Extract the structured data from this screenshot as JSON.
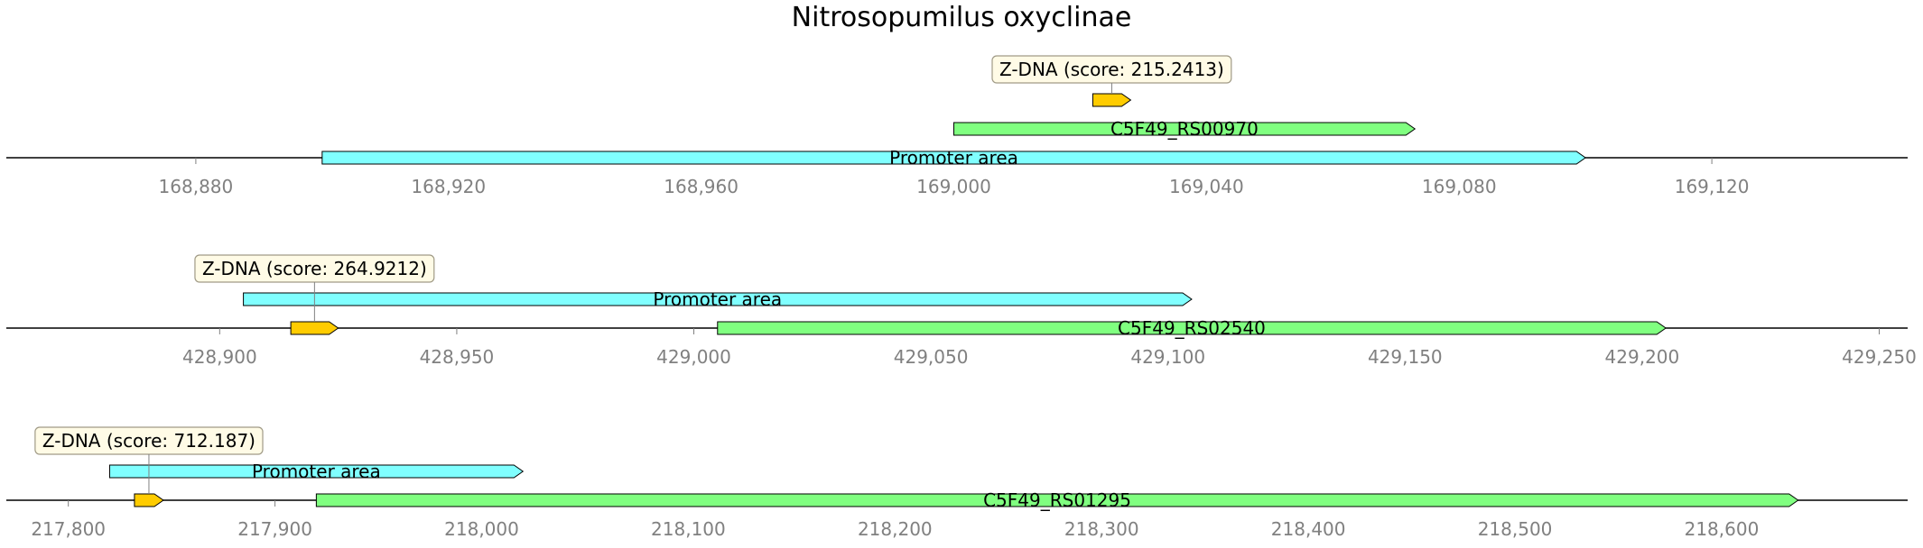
{
  "title": "Nitrosopumilus oxyclinae",
  "colors": {
    "axis": "#000000",
    "tick_text": "#808080",
    "z_dna": "#ffcc00",
    "promoter": "#80ffff",
    "gene": "#80ff80",
    "callout_fill": "#fffbe6",
    "callout_border": "#a09a86"
  },
  "chart_data": [
    {
      "type": "genomic-track",
      "xlim": [
        168850,
        169151
      ],
      "ticks": [
        168880,
        168920,
        168960,
        169000,
        169040,
        169080,
        169120
      ],
      "tick_labels": [
        "168,880",
        "168,920",
        "168,960",
        "169,000",
        "169,040",
        "169,080",
        "169,120"
      ],
      "features": [
        {
          "kind": "promoter",
          "label": "Promoter area",
          "start": 168900,
          "end": 169100,
          "strand": 1,
          "level": 0
        },
        {
          "kind": "gene",
          "label": "C5F49_RS00970",
          "start": 169000,
          "end": 169073,
          "strand": 1,
          "level": 1
        },
        {
          "kind": "z_dna",
          "label": "",
          "start": 169022,
          "end": 169028,
          "strand": 1,
          "level": 2
        }
      ],
      "callout": {
        "text": "Z-DNA (score: 215.2413)",
        "feature_index": 2,
        "level": 3
      }
    },
    {
      "type": "genomic-track",
      "xlim": [
        428855,
        429256
      ],
      "ticks": [
        428900,
        428950,
        429000,
        429050,
        429100,
        429150,
        429200,
        429250
      ],
      "tick_labels": [
        "428,900",
        "428,950",
        "429,000",
        "429,050",
        "429,100",
        "429,150",
        "429,200",
        "429,250"
      ],
      "features": [
        {
          "kind": "z_dna",
          "label": "",
          "start": 428915,
          "end": 428925,
          "strand": 1,
          "level": 0
        },
        {
          "kind": "gene",
          "label": "C5F49_RS02540",
          "start": 429005,
          "end": 429205,
          "strand": 1,
          "level": 0
        },
        {
          "kind": "promoter",
          "label": "Promoter area",
          "start": 428905,
          "end": 429105,
          "strand": 1,
          "level": 1
        }
      ],
      "callout": {
        "text": "Z-DNA (score: 264.9212)",
        "feature_index": 0,
        "level": 2
      }
    },
    {
      "type": "genomic-track",
      "xlim": [
        217770,
        218690
      ],
      "ticks": [
        217800,
        217900,
        218000,
        218100,
        218200,
        218300,
        218400,
        218500,
        218600
      ],
      "tick_labels": [
        "217,800",
        "217,900",
        "218,000",
        "218,100",
        "218,200",
        "218,300",
        "218,400",
        "218,500",
        "218,600"
      ],
      "features": [
        {
          "kind": "z_dna",
          "label": "",
          "start": 217832,
          "end": 217846,
          "strand": 1,
          "level": 0
        },
        {
          "kind": "gene",
          "label": "C5F49_RS01295",
          "start": 217920,
          "end": 218637,
          "strand": 1,
          "level": 0
        },
        {
          "kind": "promoter",
          "label": "Promoter area",
          "start": 217820,
          "end": 218020,
          "strand": 1,
          "level": 1
        }
      ],
      "callout": {
        "text": "Z-DNA (score: 712.187)",
        "feature_index": 0,
        "level": 2
      }
    }
  ]
}
